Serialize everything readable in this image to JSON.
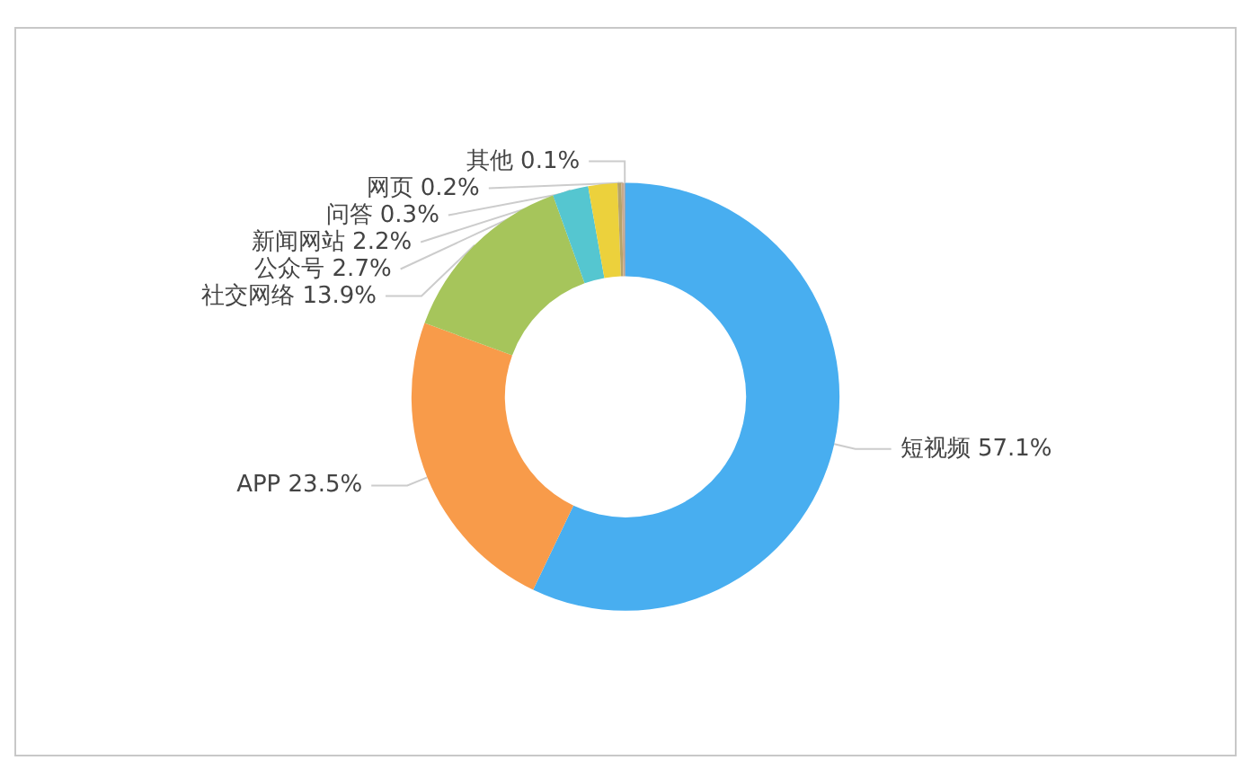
{
  "chart_data": {
    "type": "donut",
    "categories": [
      "短视频",
      "APP",
      "社交网络",
      "公众号",
      "新闻网站",
      "问答",
      "网页",
      "其他"
    ],
    "values": [
      57.1,
      23.5,
      13.9,
      2.7,
      2.2,
      0.3,
      0.2,
      0.1
    ],
    "colors": [
      "#48aef0",
      "#f89b4a",
      "#a6c55b",
      "#55c6d0",
      "#ecd13c",
      "#b5a36a",
      "#c9a98a",
      "#9aa4b0"
    ],
    "value_labels": [
      "57.1%",
      "23.5%",
      "13.9%",
      "2.7%",
      "2.2%",
      "0.3%",
      "0.2%",
      "0.1%"
    ],
    "legend": false
  }
}
